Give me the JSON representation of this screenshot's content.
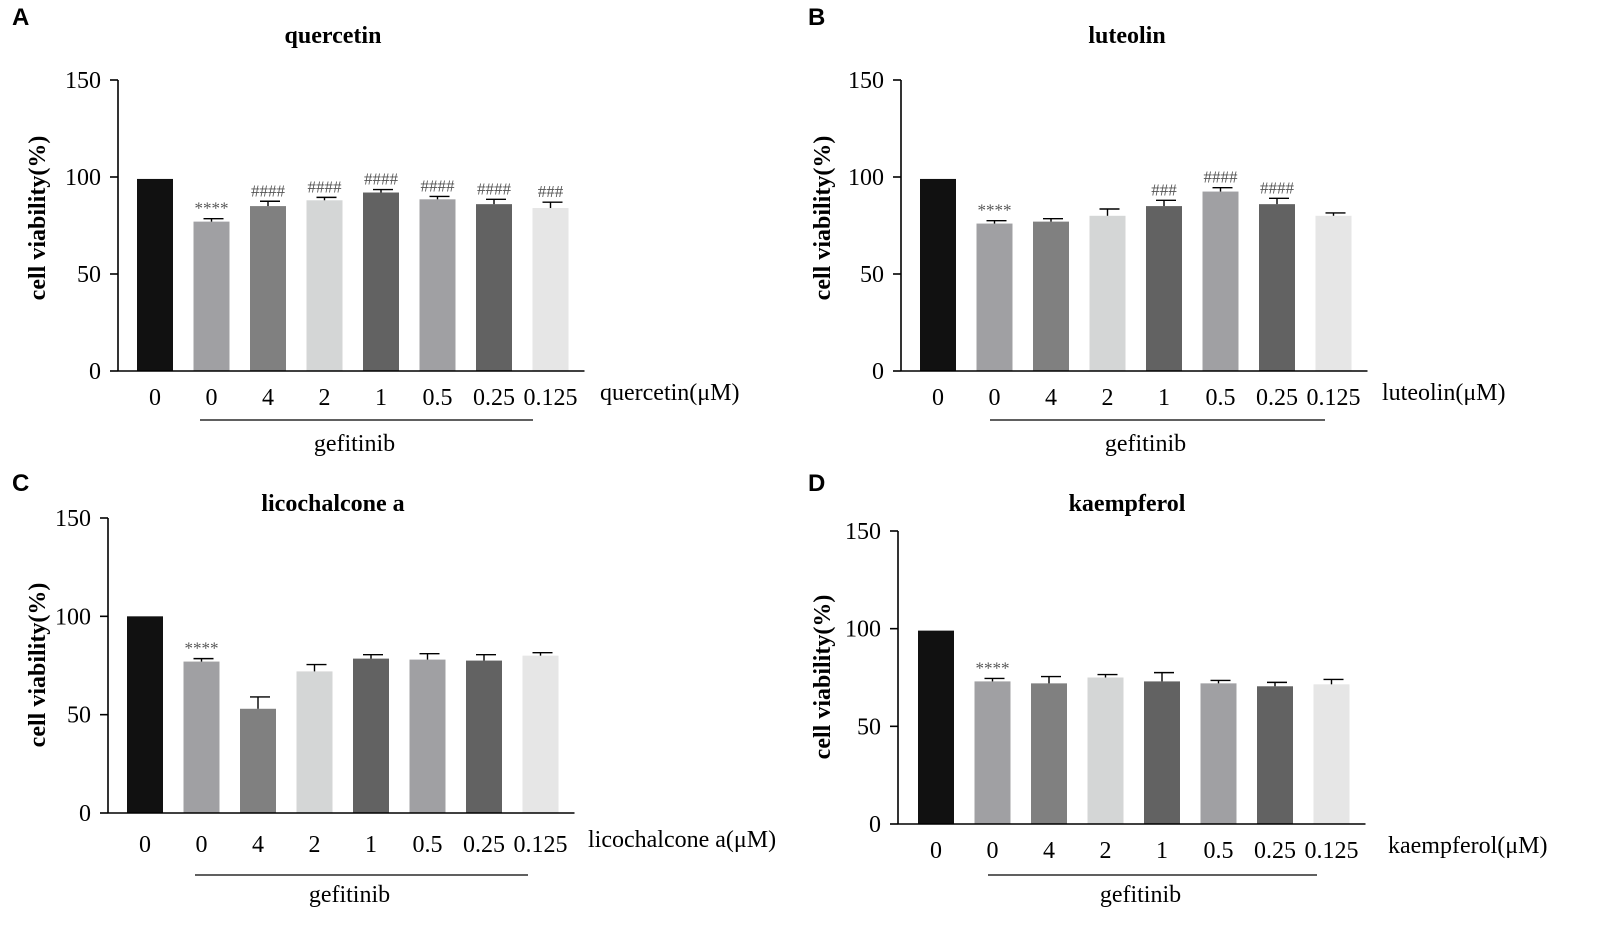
{
  "chart_data": [
    {
      "panel": "A",
      "type": "bar",
      "title": "quercetin",
      "ylabel": "cell viability(%)",
      "xlabel": "quercetin(μM)",
      "group_label": "gefitinib",
      "ylim": [
        0,
        150
      ],
      "yticks": [
        "0",
        "50",
        "100",
        "150"
      ],
      "categories": [
        "0",
        "0",
        "4",
        "2",
        "1",
        "0.5",
        "0.25",
        "0.125"
      ],
      "values": [
        99,
        77,
        85,
        88,
        92,
        88.5,
        86,
        84
      ],
      "errors": [
        0,
        1.5,
        2.5,
        1.5,
        1.5,
        1.5,
        2.5,
        3
      ],
      "annotations": [
        "",
        "****",
        "####",
        "####",
        "####",
        "####",
        "####",
        "###"
      ],
      "bar_colors": [
        "#111111",
        "#a0a0a3",
        "#808080",
        "#d4d6d6",
        "#626262",
        "#a0a0a3",
        "#626262",
        "#e6e6e6"
      ]
    },
    {
      "panel": "B",
      "type": "bar",
      "title": "luteolin",
      "ylabel": "cell viability(%)",
      "xlabel": "luteolin(μM)",
      "group_label": "gefitinib",
      "ylim": [
        0,
        150
      ],
      "yticks": [
        "0",
        "50",
        "100",
        "150"
      ],
      "categories": [
        "0",
        "0",
        "4",
        "2",
        "1",
        "0.5",
        "0.25",
        "0.125"
      ],
      "values": [
        99,
        76,
        77,
        80,
        85,
        92.5,
        86,
        80
      ],
      "errors": [
        0,
        1.5,
        1.5,
        3.5,
        3,
        2,
        3,
        1.5
      ],
      "annotations": [
        "",
        "****",
        "",
        "",
        "###",
        "####",
        "####",
        ""
      ],
      "bar_colors": [
        "#111111",
        "#a0a0a3",
        "#808080",
        "#d4d6d6",
        "#626262",
        "#a0a0a3",
        "#626262",
        "#e6e6e6"
      ]
    },
    {
      "panel": "C",
      "type": "bar",
      "title": "licochalcone a",
      "ylabel": "cell viability(%)",
      "xlabel": "licochalcone a(μM)",
      "group_label": "gefitinib",
      "ylim": [
        0,
        150
      ],
      "yticks": [
        "0",
        "50",
        "100",
        "150"
      ],
      "categories": [
        "0",
        "0",
        "4",
        "2",
        "1",
        "0.5",
        "0.25",
        "0.125"
      ],
      "values": [
        100,
        77,
        53,
        72,
        78.5,
        78,
        77.5,
        80
      ],
      "errors": [
        0,
        1.5,
        6,
        3.5,
        2,
        3,
        3,
        1.5
      ],
      "annotations": [
        "",
        "****",
        "",
        "",
        "",
        "",
        "",
        ""
      ],
      "bar_colors": [
        "#111111",
        "#a0a0a3",
        "#808080",
        "#d4d6d6",
        "#626262",
        "#a0a0a3",
        "#626262",
        "#e6e6e6"
      ]
    },
    {
      "panel": "D",
      "type": "bar",
      "title": "kaempferol",
      "ylabel": "cell viability(%)",
      "xlabel": "kaempferol(μM)",
      "group_label": "gefitinib",
      "ylim": [
        0,
        150
      ],
      "yticks": [
        "0",
        "50",
        "100",
        "150"
      ],
      "categories": [
        "0",
        "0",
        "4",
        "2",
        "1",
        "0.5",
        "0.25",
        "0.125"
      ],
      "values": [
        99,
        73,
        72,
        75,
        73,
        72,
        70.5,
        71.5
      ],
      "errors": [
        0,
        1.5,
        3.5,
        1.5,
        4.5,
        1.5,
        2,
        2.5
      ],
      "annotations": [
        "",
        "****",
        "",
        "",
        "",
        "",
        "",
        ""
      ],
      "bar_colors": [
        "#111111",
        "#a0a0a3",
        "#808080",
        "#d4d6d6",
        "#626262",
        "#a0a0a3",
        "#626262",
        "#e6e6e6"
      ]
    }
  ]
}
